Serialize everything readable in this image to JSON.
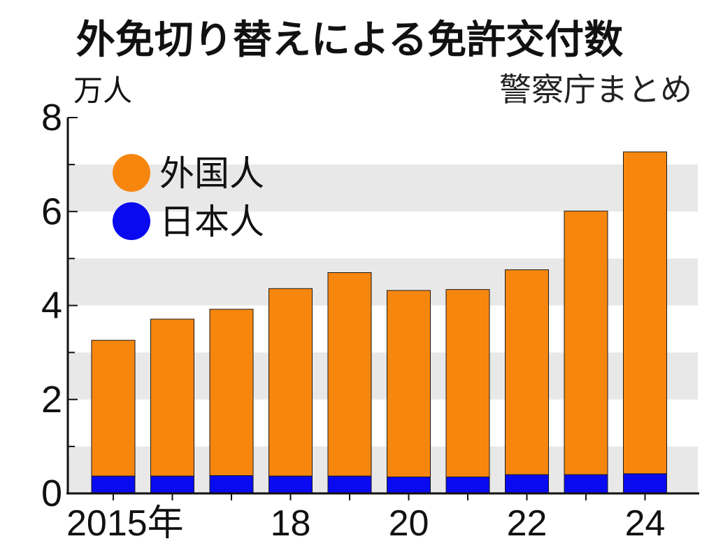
{
  "chart_data": {
    "type": "bar",
    "stacked": true,
    "title": "外免切り替えによる免許交付数",
    "source": "警察庁まとめ",
    "y_unit": "万人",
    "ylim": [
      0,
      8
    ],
    "y_ticks": [
      "0",
      "2",
      "4",
      "6",
      "8"
    ],
    "y_tick_values": [
      0,
      2,
      4,
      6,
      8
    ],
    "x": [
      2015,
      2016,
      2017,
      2018,
      2019,
      2020,
      2021,
      2022,
      2023,
      2024
    ],
    "x_tick_labels": [
      "2015年",
      "",
      "",
      "18",
      "",
      "20",
      "",
      "22",
      "",
      "24"
    ],
    "grid_bands": true,
    "legend_position": "top-left",
    "series": [
      {
        "name": "日本人",
        "color": "#0a0af0",
        "values": [
          0.37,
          0.37,
          0.38,
          0.37,
          0.37,
          0.35,
          0.35,
          0.4,
          0.4,
          0.42
        ]
      },
      {
        "name": "外国人",
        "color": "#f7860f",
        "values": [
          2.89,
          3.34,
          3.54,
          3.99,
          4.33,
          3.97,
          3.99,
          4.36,
          5.61,
          6.85
        ]
      }
    ]
  }
}
